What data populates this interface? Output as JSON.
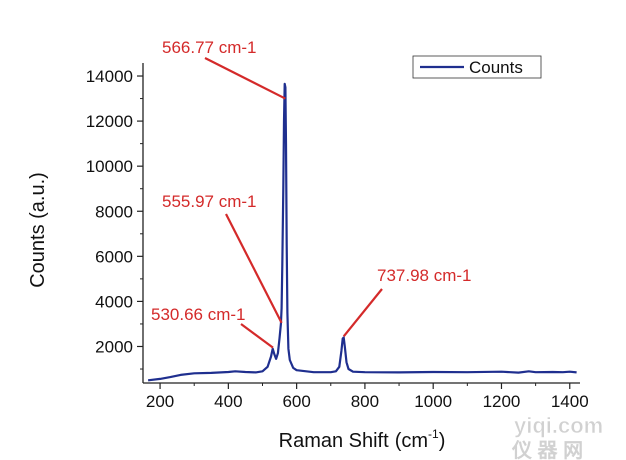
{
  "chart_data": {
    "type": "line",
    "xlabel": "Raman Shift",
    "xlabel_unit": "(cm",
    "xlabel_sup": "-1",
    "xlabel_close": ")",
    "ylabel": "Counts (a.u.)",
    "xlim": [
      150,
      1430
    ],
    "ylim": [
      380,
      14400
    ],
    "x_ticks": [
      200,
      400,
      600,
      800,
      1000,
      1200,
      1400
    ],
    "y_ticks": [
      2000,
      4000,
      6000,
      8000,
      10000,
      12000,
      14000
    ],
    "legend_position": "top-right",
    "line_color": "#1f2f8f",
    "annotation_color": "#d42a2a",
    "series": [
      {
        "name": "Counts",
        "x": [
          165,
          200,
          230,
          260,
          300,
          350,
          400,
          420,
          450,
          480,
          500,
          515,
          525,
          530,
          535,
          540,
          545,
          550,
          554,
          556,
          558,
          561,
          563,
          565,
          567,
          569,
          571,
          573,
          576,
          580,
          590,
          600,
          650,
          700,
          715,
          725,
          731,
          735,
          738,
          741,
          746,
          752,
          765,
          800,
          900,
          1000,
          1100,
          1200,
          1250,
          1280,
          1300,
          1350,
          1380,
          1400,
          1420
        ],
        "y": [
          500,
          560,
          640,
          740,
          810,
          830,
          870,
          900,
          870,
          850,
          900,
          1100,
          1550,
          1900,
          1650,
          1450,
          1700,
          2400,
          3000,
          3700,
          5600,
          9000,
          12000,
          13650,
          13500,
          11000,
          6500,
          3500,
          1900,
          1400,
          1050,
          950,
          860,
          860,
          900,
          1100,
          1800,
          2350,
          2400,
          2000,
          1300,
          1000,
          880,
          860,
          850,
          870,
          860,
          880,
          840,
          900,
          860,
          870,
          860,
          880,
          850
        ]
      }
    ],
    "annotations": [
      {
        "label": "566.77 cm-1",
        "x": 566.77
      },
      {
        "label": "555.97 cm-1",
        "x": 555.97
      },
      {
        "label": "530.66 cm-1",
        "x": 530.66
      },
      {
        "label": "737.98 cm-1",
        "x": 737.98
      }
    ]
  },
  "watermark": {
    "line1": "yiqi.com",
    "line2": "仪 器 网"
  }
}
